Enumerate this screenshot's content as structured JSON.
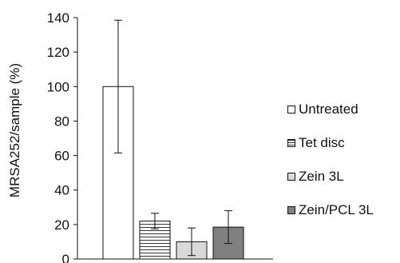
{
  "chart_data": {
    "type": "bar",
    "ylabel": "MRSA252/sample (%)",
    "ylim": [
      0,
      140
    ],
    "yticks": [
      0,
      20,
      40,
      60,
      80,
      100,
      120,
      140
    ],
    "grid": false,
    "legend_position": "right",
    "categories": [
      "Untreated",
      "Tet disc",
      "Zein 3L",
      "Zein/PCL 3L"
    ],
    "values": [
      100,
      22,
      10,
      18.5
    ],
    "error": [
      38.5,
      4.5,
      8,
      9.5
    ],
    "fills": [
      "#ffffff",
      "striped",
      "#d9d9d9",
      "#808080"
    ]
  }
}
